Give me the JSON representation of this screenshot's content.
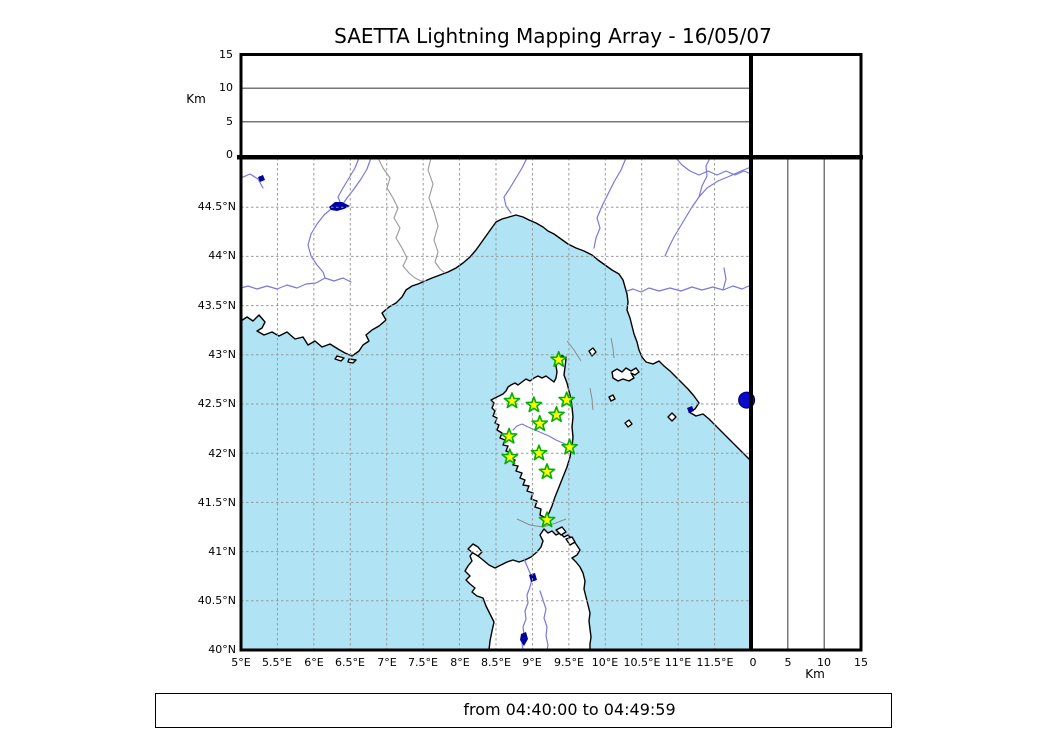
{
  "title": "SAETTA Lightning Mapping Array - 16/05/07",
  "footer": {
    "time_range": "from 04:40:00 to 04:49:59"
  },
  "top_panel": {
    "axis_label": "Km",
    "ticks": [
      "15",
      "10",
      "5",
      "0"
    ]
  },
  "right_panel": {
    "axis_label": "Km",
    "ticks": [
      "0",
      "5",
      "10",
      "15"
    ]
  },
  "map_panel": {
    "lat_ticks": [
      "44.5°N",
      "44°N",
      "43.5°N",
      "43°N",
      "42.5°N",
      "42°N",
      "41.5°N",
      "41°N",
      "40.5°N",
      "40°N"
    ],
    "lon_ticks": [
      "5°E",
      "5.5°E",
      "6°E",
      "6.5°E",
      "7°E",
      "7.5°E",
      "8°E",
      "8.5°E",
      "9°E",
      "9.5°E",
      "10°E",
      "10.5°E",
      "11°E",
      "11.5°E"
    ]
  },
  "chart_data": {
    "type": "map",
    "region": "Western Mediterranean: SE France, NW Italy, Corsica, N Sardinia",
    "lon_range_deg_e": [
      5,
      12
    ],
    "lat_range_deg_n": [
      40,
      45
    ],
    "altitude_axis_km": {
      "min": 0,
      "max": 15,
      "ticks": [
        0,
        5,
        10,
        15
      ],
      "gridlines": [
        5,
        10
      ]
    },
    "stations": [
      {
        "lon": 9.36,
        "lat": 42.95
      },
      {
        "lon": 8.72,
        "lat": 42.53
      },
      {
        "lon": 9.02,
        "lat": 42.49
      },
      {
        "lon": 9.47,
        "lat": 42.54
      },
      {
        "lon": 9.33,
        "lat": 42.39
      },
      {
        "lon": 9.1,
        "lat": 42.3
      },
      {
        "lon": 8.68,
        "lat": 42.17
      },
      {
        "lon": 9.51,
        "lat": 42.06
      },
      {
        "lon": 9.09,
        "lat": 42.0
      },
      {
        "lon": 8.69,
        "lat": 41.96
      },
      {
        "lon": 9.2,
        "lat": 41.81
      },
      {
        "lon": 9.2,
        "lat": 41.32
      }
    ],
    "lake_point": {
      "lon": 11.94,
      "lat": 42.54
    }
  },
  "colors": {
    "sea": "#b0e4f4",
    "land": "#ffffff",
    "coastline": "#000000",
    "river": "#7878e0",
    "admin_border": "#999999",
    "lake": "#0000a0",
    "lake_point": "#0a0acc",
    "grid": "#999999",
    "station_fill": "#ffff00",
    "station_edge": "#00b000"
  }
}
